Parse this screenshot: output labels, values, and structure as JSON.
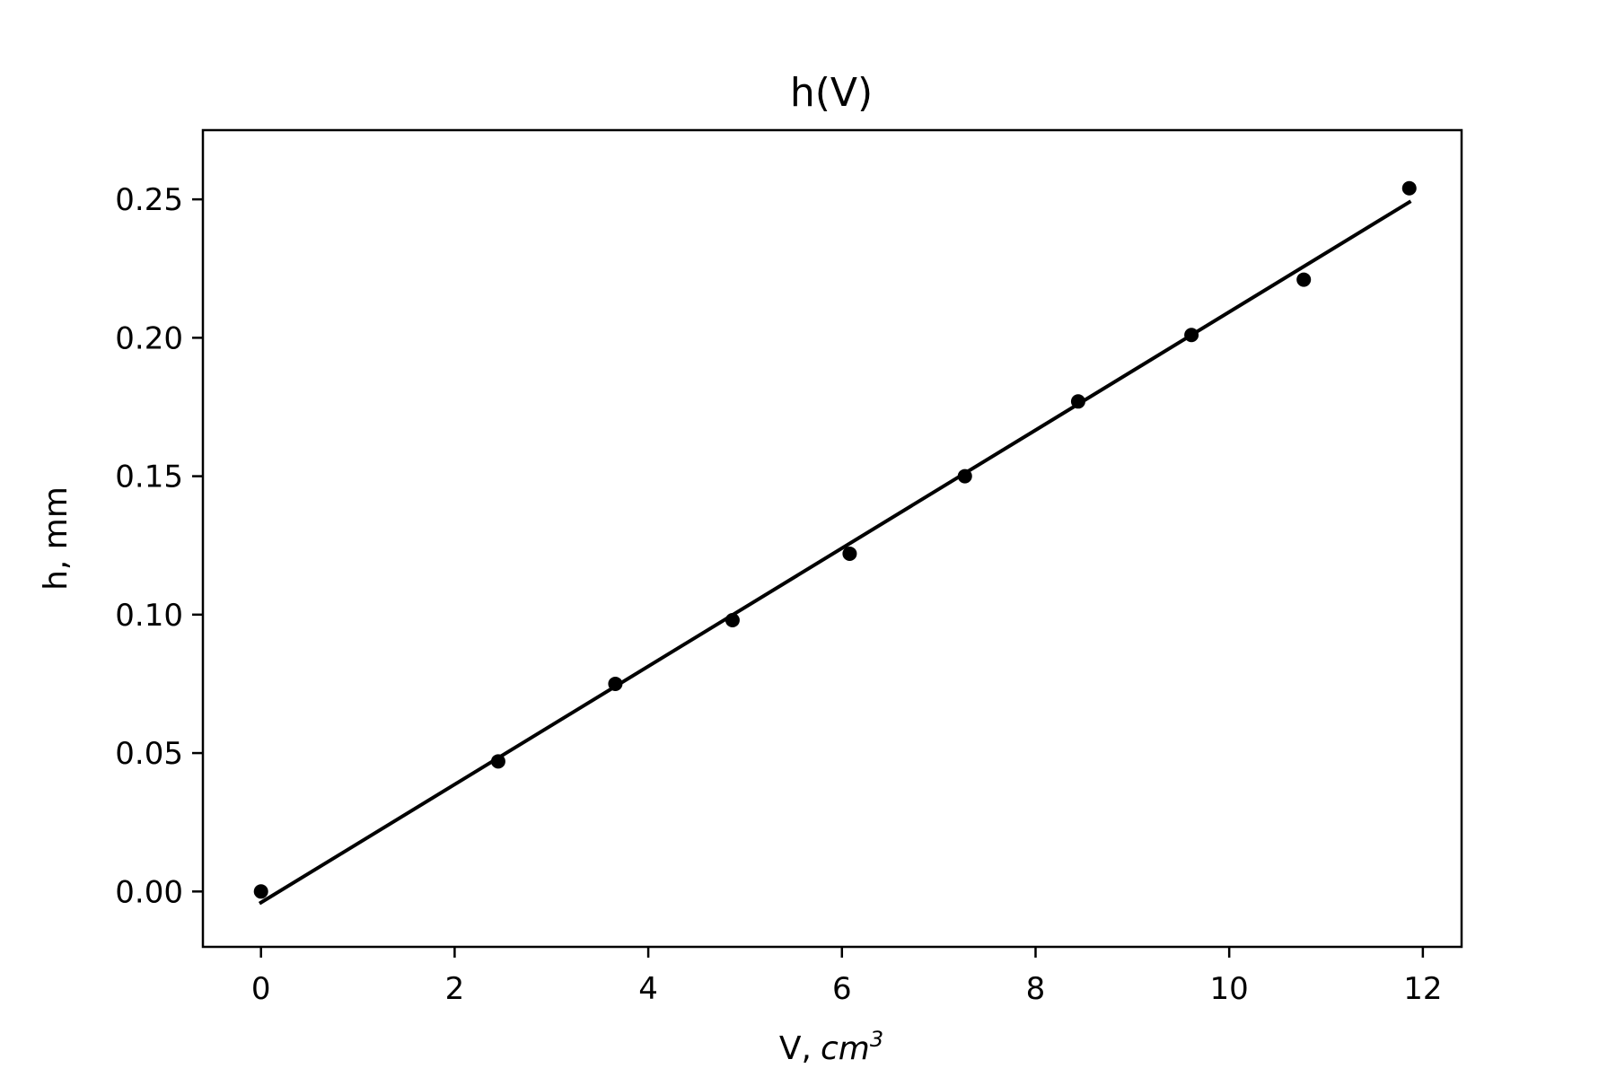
{
  "chart_data": {
    "type": "scatter",
    "title": "h(V)",
    "xlabel": "V,",
    "xlabel_unit": "cm",
    "xlabel_unit_sup": "3",
    "ylabel": "h, mm",
    "xlim": [
      -0.6,
      12.4
    ],
    "ylim": [
      -0.02,
      0.275
    ],
    "xticks": [
      0,
      2,
      4,
      6,
      8,
      10,
      12
    ],
    "yticks": [
      0.0,
      0.05,
      0.1,
      0.15,
      0.2,
      0.25
    ],
    "ytick_labels": [
      "0.00",
      "0.05",
      "0.10",
      "0.15",
      "0.20",
      "0.25"
    ],
    "xtick_labels": [
      "0",
      "2",
      "4",
      "6",
      "8",
      "10",
      "12"
    ],
    "grid": false,
    "points": {
      "x": [
        0,
        2.45,
        3.66,
        4.87,
        6.08,
        7.27,
        8.44,
        9.61,
        10.77,
        11.86
      ],
      "y": [
        0.0,
        0.047,
        0.075,
        0.098,
        0.122,
        0.15,
        0.177,
        0.201,
        0.221,
        0.254
      ]
    },
    "fit_line": {
      "x": [
        0,
        11.86
      ],
      "y": [
        -0.004,
        0.249
      ]
    },
    "colors": {
      "points": "#000000",
      "line": "#000000",
      "axes": "#000000"
    }
  }
}
